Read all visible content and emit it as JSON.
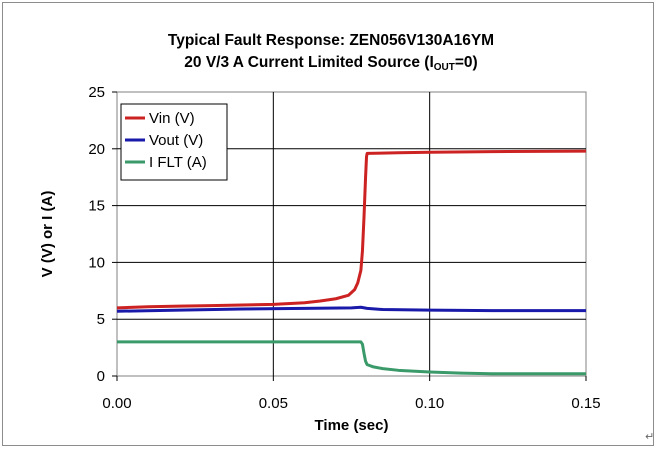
{
  "chart_data": {
    "type": "line",
    "title": "Typical Fault Response: ZEN056V130A16YM",
    "subtitle_parts": {
      "before": "20 V/3 A  Current Limited Source (I",
      "sub": "OUT",
      "after": "=0)"
    },
    "xlabel": "Time (sec)",
    "ylabel": "V (V) or I (A)",
    "xlim": [
      0.0,
      0.15
    ],
    "ylim": [
      0,
      25
    ],
    "x_ticks": [
      0.0,
      0.05,
      0.1,
      0.15
    ],
    "x_tick_labels": [
      "0.00",
      "0.05",
      "0.10",
      "0.15"
    ],
    "y_ticks": [
      0,
      5,
      10,
      15,
      20,
      25
    ],
    "y_tick_labels": [
      "0",
      "5",
      "10",
      "15",
      "20",
      "25"
    ],
    "grid": true,
    "legend_position": "top-left",
    "series": [
      {
        "name": "Vin (V)",
        "color": "#cc2222",
        "points": [
          [
            0.0,
            6.0
          ],
          [
            0.01,
            6.1
          ],
          [
            0.02,
            6.15
          ],
          [
            0.03,
            6.2
          ],
          [
            0.04,
            6.25
          ],
          [
            0.05,
            6.3
          ],
          [
            0.06,
            6.45
          ],
          [
            0.065,
            6.6
          ],
          [
            0.07,
            6.8
          ],
          [
            0.074,
            7.1
          ],
          [
            0.076,
            7.6
          ],
          [
            0.077,
            8.2
          ],
          [
            0.078,
            9.3
          ],
          [
            0.0785,
            11.0
          ],
          [
            0.079,
            14.0
          ],
          [
            0.0795,
            17.5
          ],
          [
            0.0798,
            19.3
          ],
          [
            0.08,
            19.6
          ],
          [
            0.09,
            19.65
          ],
          [
            0.1,
            19.7
          ],
          [
            0.12,
            19.75
          ],
          [
            0.15,
            19.8
          ]
        ]
      },
      {
        "name": "Vout (V)",
        "color": "#1a1aaa",
        "points": [
          [
            0.0,
            5.7
          ],
          [
            0.02,
            5.8
          ],
          [
            0.04,
            5.9
          ],
          [
            0.06,
            5.95
          ],
          [
            0.075,
            6.0
          ],
          [
            0.078,
            6.05
          ],
          [
            0.08,
            5.95
          ],
          [
            0.085,
            5.85
          ],
          [
            0.1,
            5.8
          ],
          [
            0.12,
            5.75
          ],
          [
            0.15,
            5.75
          ]
        ]
      },
      {
        "name": "I FLT (A)",
        "color": "#3a9a6a",
        "points": [
          [
            0.0,
            3.0
          ],
          [
            0.078,
            3.0
          ],
          [
            0.0785,
            2.8
          ],
          [
            0.079,
            2.0
          ],
          [
            0.0795,
            1.3
          ],
          [
            0.08,
            1.0
          ],
          [
            0.082,
            0.8
          ],
          [
            0.085,
            0.65
          ],
          [
            0.09,
            0.5
          ],
          [
            0.1,
            0.35
          ],
          [
            0.11,
            0.25
          ],
          [
            0.12,
            0.2
          ],
          [
            0.15,
            0.2
          ]
        ]
      }
    ]
  }
}
